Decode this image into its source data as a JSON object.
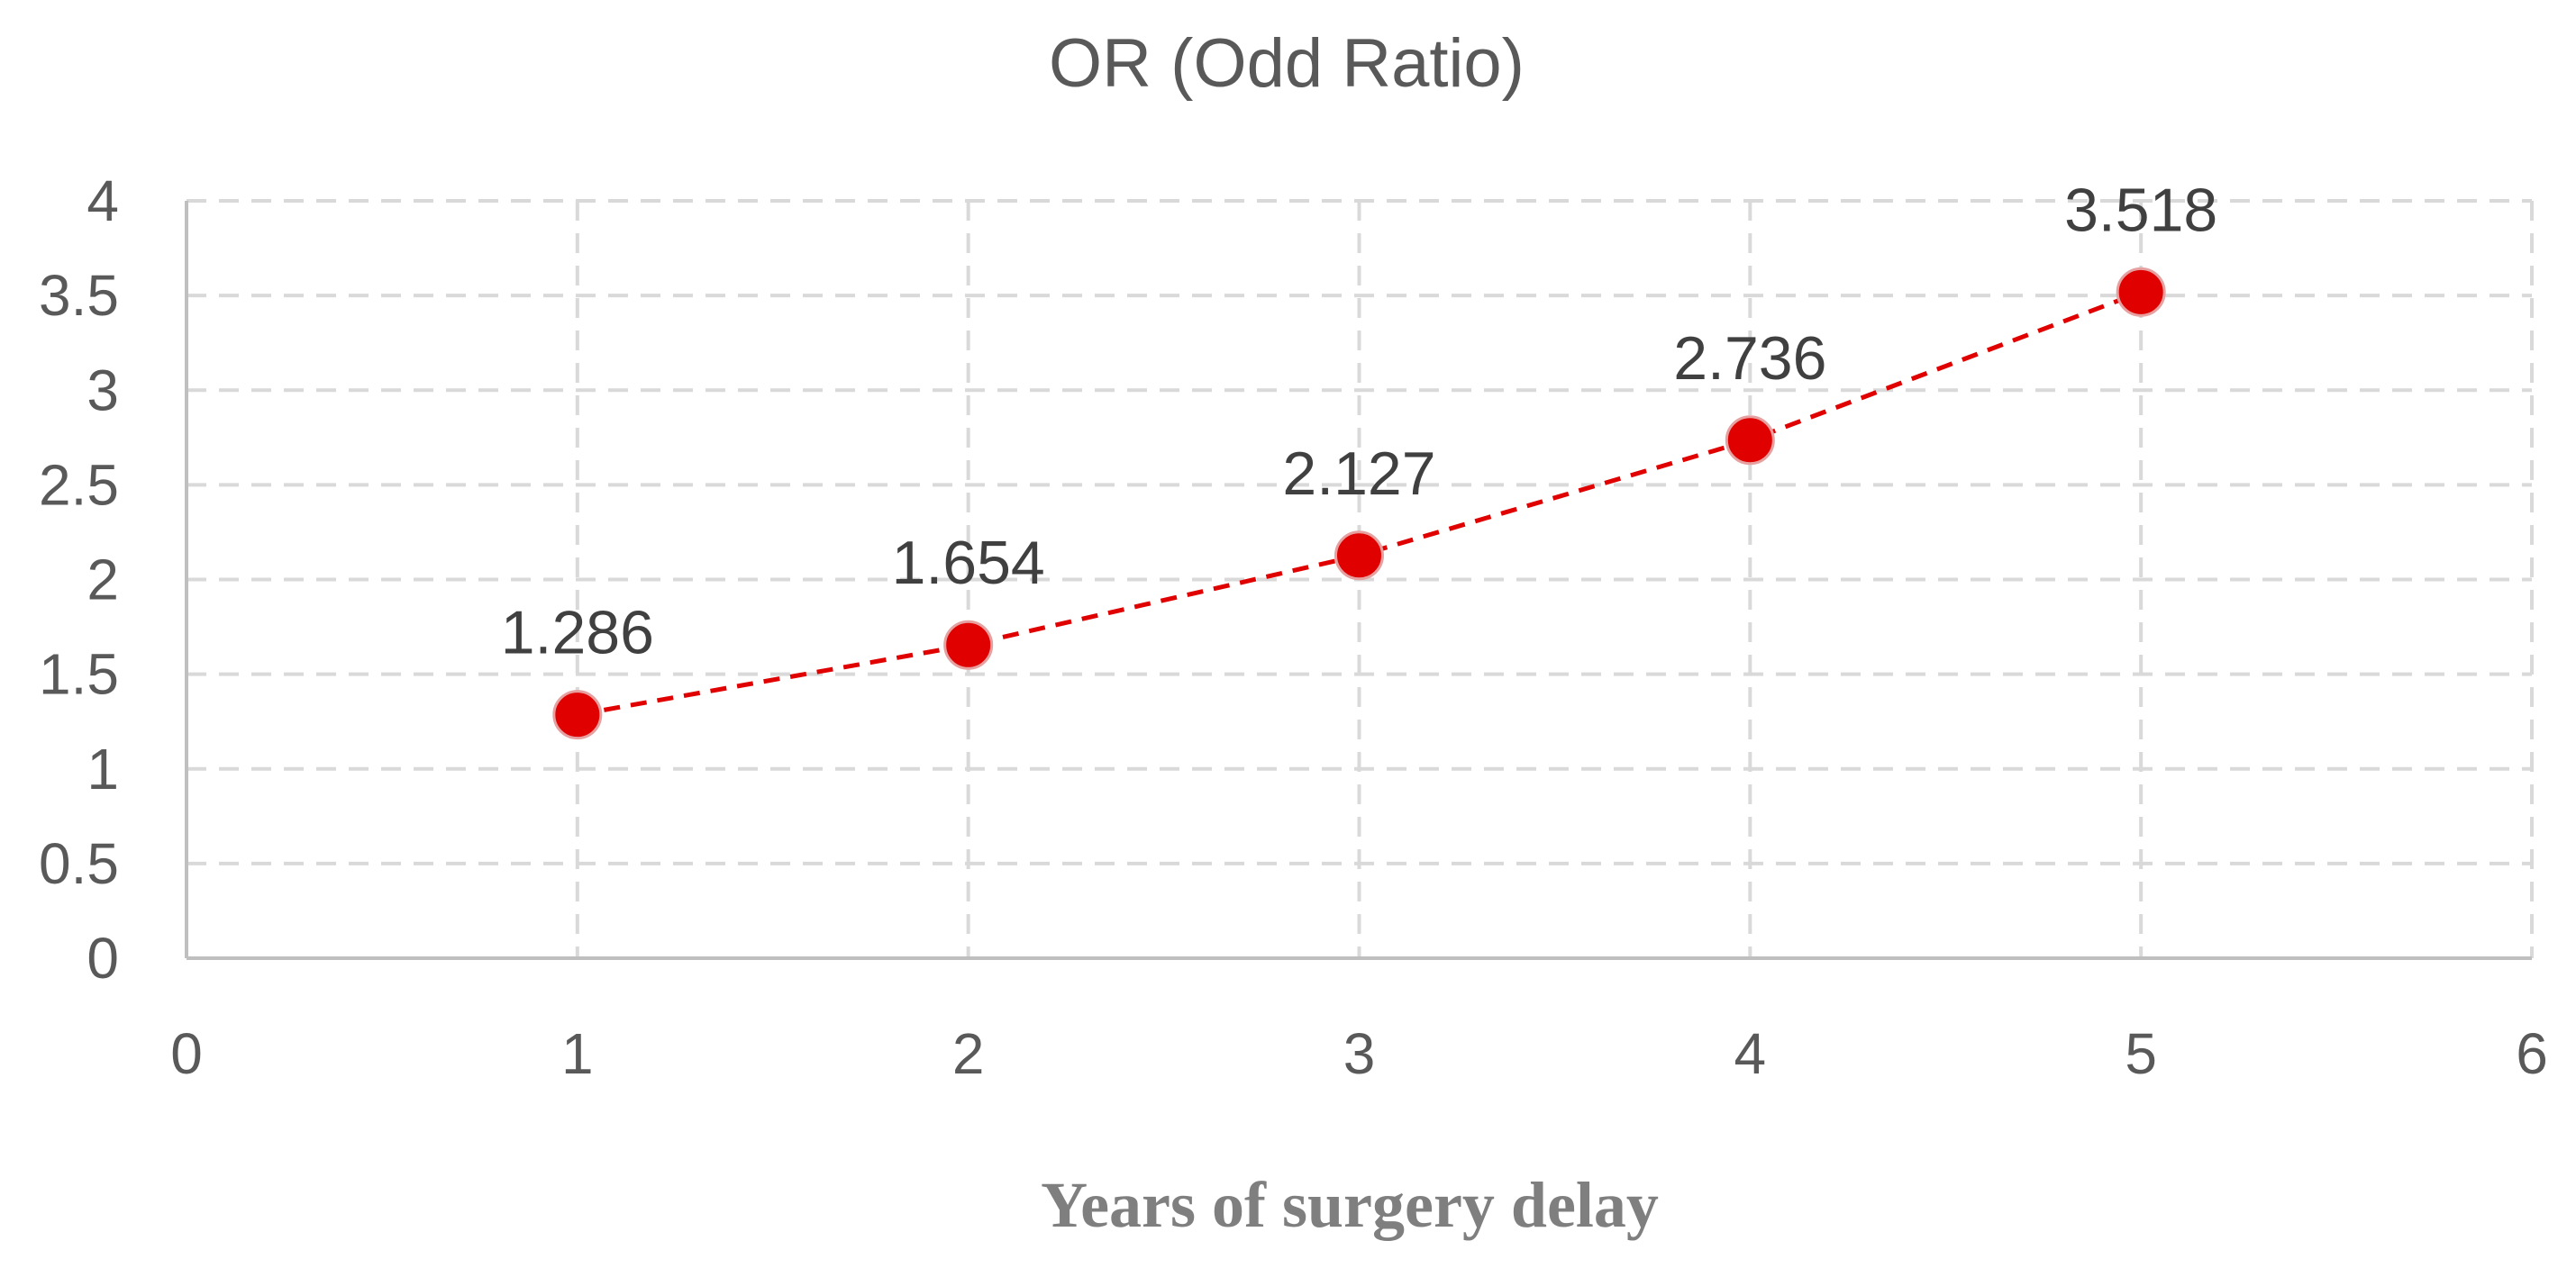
{
  "chart_data": {
    "type": "scatter",
    "title": "OR (Odd Ratio)",
    "xlabel": "Years of surgery delay",
    "ylabel": "",
    "xlim": [
      0,
      6
    ],
    "ylim": [
      0,
      4
    ],
    "x_ticks": [
      0,
      1,
      2,
      3,
      4,
      5,
      6
    ],
    "y_ticks": [
      0,
      0.5,
      1,
      1.5,
      2,
      2.5,
      3,
      3.5,
      4
    ],
    "grid": true,
    "legend": "none",
    "series": [
      {
        "x": [
          1,
          2,
          3,
          4,
          5
        ],
        "y": [
          1.286,
          1.654,
          2.127,
          2.736,
          3.518
        ],
        "data_labels": [
          "1.286",
          "1.654",
          "2.127",
          "2.736",
          "3.518"
        ],
        "color": "#e00000",
        "line_style": "dashed"
      }
    ]
  }
}
